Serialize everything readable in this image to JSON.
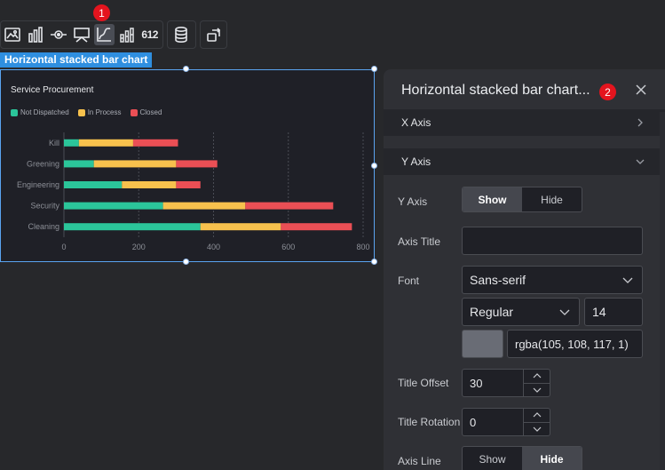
{
  "toolbar": {
    "group1_icons": [
      "image-icon",
      "bar-chart-icon",
      "eye-target-icon",
      "monitor-icon",
      "line-chart-icon",
      "number-chart-icon"
    ],
    "number_button_label": "612",
    "group2_icons": [
      "database-icon"
    ],
    "group3_icons": [
      "switch-icon"
    ]
  },
  "badges": {
    "first": "1",
    "second": "2"
  },
  "chart_tag": "Horizontal stacked bar chart",
  "chart_data": {
    "type": "bar",
    "orientation": "horizontal",
    "stacked": true,
    "title": "Service Procurement",
    "categories": [
      "Kill",
      "Greening",
      "Engineering",
      "Security",
      "Cleaning"
    ],
    "series": [
      {
        "name": "Not Dispatched",
        "color": "#2bc59a",
        "values": [
          40,
          80,
          155,
          265,
          365
        ]
      },
      {
        "name": "In Process",
        "color": "#f7c14d",
        "values": [
          145,
          220,
          145,
          220,
          215
        ]
      },
      {
        "name": "Closed",
        "color": "#ea4f55",
        "values": [
          120,
          110,
          65,
          235,
          190
        ]
      }
    ],
    "xticks": [
      "0",
      "200",
      "400",
      "600",
      "800"
    ],
    "xlim": [
      0,
      800
    ],
    "grid": true,
    "legend_position": "top-left"
  },
  "panel": {
    "title": "Horizontal stacked bar chart...",
    "sections": {
      "x_axis": "X Axis",
      "y_axis": "Y Axis"
    },
    "fields": {
      "y_axis_label": "Y Axis",
      "show": "Show",
      "hide": "Hide",
      "axis_title_label": "Axis Title",
      "axis_title_value": "",
      "font_label": "Font",
      "font_family": "Sans-serif",
      "font_weight": "Regular",
      "font_size": "14",
      "color_value": "rgba(105, 108, 117, 1)",
      "color_swatch": "#696c75",
      "title_offset_label": "Title Offset",
      "title_offset_value": "30",
      "title_rotation_label": "Title Rotation",
      "title_rotation_value": "0",
      "axis_line_label": "Axis Line"
    }
  }
}
